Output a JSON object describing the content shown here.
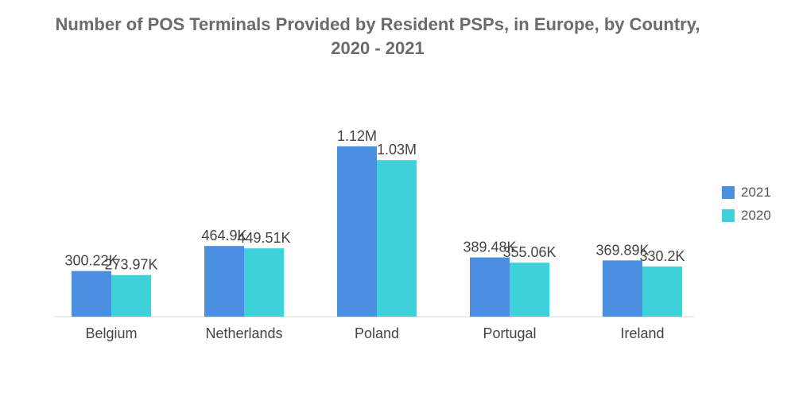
{
  "chart_data": {
    "type": "bar",
    "title": "Number of POS Terminals Provided by Resident PSPs, in Europe, by Country,",
    "subtitle": "2020 - 2021",
    "xlabel": "",
    "ylabel": "",
    "categories": [
      "Belgium",
      "Netherlands",
      "Poland",
      "Portugal",
      "Ireland"
    ],
    "series": [
      {
        "name": "2021",
        "values": [
          300220,
          464900,
          1120000,
          389480,
          369890
        ],
        "labels": [
          "300.22K",
          "464.9K",
          "1.12M",
          "389.48K",
          "369.89K"
        ],
        "color": "#4a8fe0"
      },
      {
        "name": "2020",
        "values": [
          273970,
          449510,
          1030000,
          355060,
          330200
        ],
        "labels": [
          "273.97K",
          "449.51K",
          "1.03M",
          "355.06K",
          "330.2K"
        ],
        "color": "#3ed1da"
      }
    ],
    "ylim": [
      0,
      1120000
    ],
    "grid": false,
    "legend_position": "right"
  }
}
